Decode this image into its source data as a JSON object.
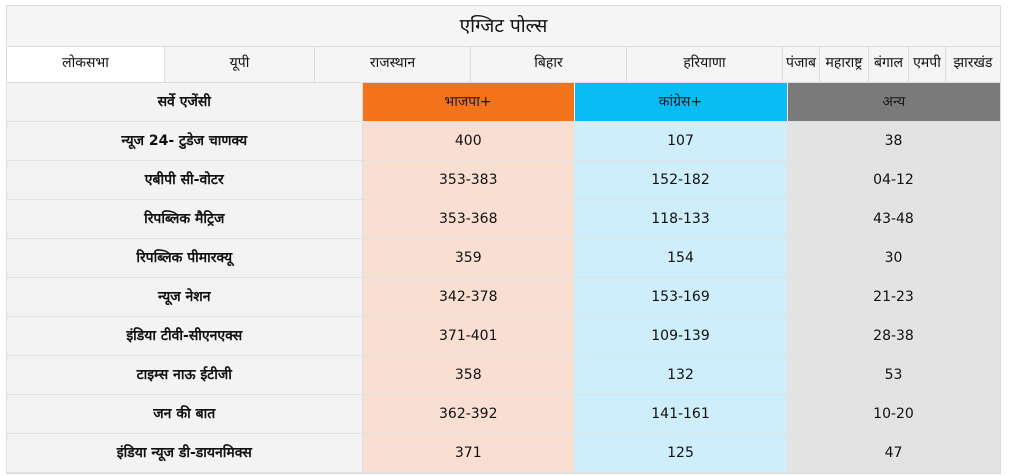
{
  "title": "एग्जिट पोल्स",
  "tabs": [
    {
      "label": "लोकसभा",
      "active": true
    },
    {
      "label": "यूपी"
    },
    {
      "label": "राजस्थान"
    },
    {
      "label": "बिहार"
    },
    {
      "label": "हरियाणा"
    },
    {
      "label": "पंजाब"
    },
    {
      "label": "महाराष्ट्र"
    },
    {
      "label": "बंगाल"
    },
    {
      "label": "एमपी"
    },
    {
      "label": "झारखंड"
    }
  ],
  "table": {
    "headers": [
      "सर्वे एजेंसी",
      "भाजपा+",
      "कांग्रेस+",
      "अन्य"
    ],
    "rows": [
      [
        "न्यूज 24- टुडेज चाणक्य",
        "400",
        "107",
        "38"
      ],
      [
        "एबीपी सी-वोटर",
        "353-383",
        "152-182",
        "04-12"
      ],
      [
        "रिपब्लिक मैट्रिज",
        "353-368",
        "118-133",
        "43-48"
      ],
      [
        "रिपब्लिक पीमारक्यू",
        "359",
        "154",
        "30"
      ],
      [
        "न्यूज नेशन",
        "342-378",
        "153-169",
        "21-23"
      ],
      [
        "इंडिया टीवी-सीएनएक्स",
        "371-401",
        "109-139",
        "28-38"
      ],
      [
        "टाइम्स नाऊ ईटीजी",
        "358",
        "132",
        "53"
      ],
      [
        "जन की बात",
        "362-392",
        "141-161",
        "10-20"
      ],
      [
        "इंडिया न्यूज डी-डायनमिक्स",
        "371",
        "125",
        "47"
      ]
    ]
  },
  "colors": {
    "bjp_header": "#f2731a",
    "bjp_cell": "#f9dfd1",
    "inc_header": "#08bdf4",
    "inc_cell": "#cdeefa",
    "others_header": "#7a7a7a",
    "others_cell": "#e3e3e4"
  }
}
